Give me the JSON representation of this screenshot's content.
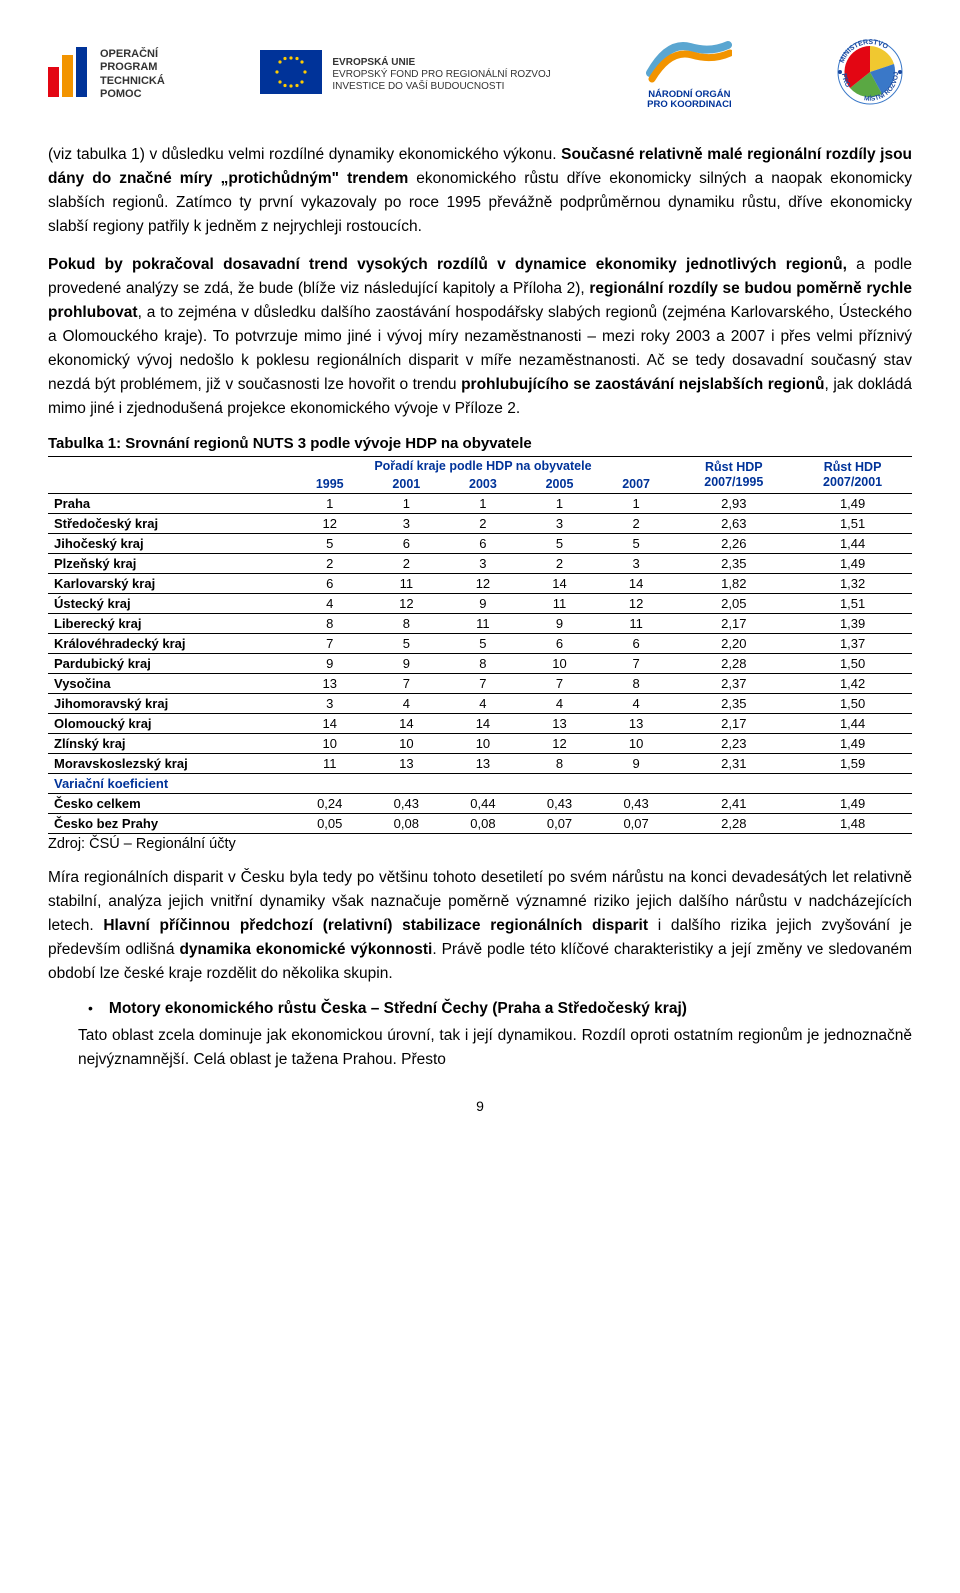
{
  "header": {
    "optp_bold": "OPERAČNÍ\nPROGRAM\nTECHNICKÁ\nPOMOC",
    "eu_title": "EVROPSKÁ UNIE",
    "eu_line1": "EVROPSKÝ FOND PRO REGIONÁLNÍ ROZVOJ",
    "eu_line2": "INVESTICE DO VAŠÍ BUDOUCNOSTI",
    "nok_line1": "NÁRODNÍ ORGÁN",
    "nok_line2": "PRO KOORDINACI",
    "mmr_top": "MINISTERSTVO",
    "mmr_left": "PRO",
    "mmr_right": "MÍSTNÍ ROZVOJ"
  },
  "para1": {
    "t1": "(viz tabulka 1) v důsledku velmi rozdílné dynamiky ekonomického výkonu. ",
    "t2": "Současné relativně malé regionální rozdíly jsou dány do značné míry „protichůdným\" trendem",
    "t3": " ekonomického růstu dříve ekonomicky silných a naopak ekonomicky slabších regionů. Zatímco ty první vykazovaly po roce 1995 převážně podprůměrnou dynamiku růstu, dříve ekonomicky slabší regiony patřily k jedněm z nejrychleji rostoucích."
  },
  "para2": {
    "t1": "Pokud by pokračoval dosavadní trend vysokých rozdílů v dynamice ekonomiky jednotlivých regionů,",
    "t2": " a podle provedené analýzy se zdá, že bude (blíže viz následující kapitoly a Příloha 2), ",
    "t3": "regionální rozdíly se budou poměrně rychle prohlubovat",
    "t4": ", a to zejména v důsledku dalšího zaostávání hospodářsky slabých regionů (zejména Karlovarského, Ústeckého a Olomouckého kraje). To potvrzuje mimo jiné i vývoj míry nezaměstnanosti – mezi roky 2003 a 2007 i přes velmi příznivý ekonomický vývoj nedošlo k poklesu regionálních disparit v míře nezaměstnanosti. Ač se tedy dosavadní současný stav nezdá být problémem, již v současnosti lze hovořit o trendu ",
    "t5": "prohlubujícího se zaostávání nejslabších regionů",
    "t6": ", jak dokládá mimo jiné i zjednodušená projekce ekonomického vývoje v Příloze 2."
  },
  "table": {
    "title": "Tabulka 1: Srovnání regionů NUTS 3 podle vývoje HDP na obyvatele",
    "header_group": "Pořadí kraje podle HDP na obyvatele",
    "years": [
      "1995",
      "2001",
      "2003",
      "2005",
      "2007"
    ],
    "rust1_a": "Růst HDP",
    "rust1_b": "2007/1995",
    "rust2_a": "Růst HDP",
    "rust2_b": "2007/2001",
    "variacni_label": "Variační koeficient",
    "rows": [
      {
        "name": "Praha",
        "v": [
          "1",
          "1",
          "1",
          "1",
          "1",
          "2,93",
          "1,49"
        ]
      },
      {
        "name": "Středočeský kraj",
        "v": [
          "12",
          "3",
          "2",
          "3",
          "2",
          "2,63",
          "1,51"
        ]
      },
      {
        "name": "Jihočeský kraj",
        "v": [
          "5",
          "6",
          "6",
          "5",
          "5",
          "2,26",
          "1,44"
        ]
      },
      {
        "name": "Plzeňský kraj",
        "v": [
          "2",
          "2",
          "3",
          "2",
          "3",
          "2,35",
          "1,49"
        ]
      },
      {
        "name": "Karlovarský kraj",
        "v": [
          "6",
          "11",
          "12",
          "14",
          "14",
          "1,82",
          "1,32"
        ]
      },
      {
        "name": "Ústecký kraj",
        "v": [
          "4",
          "12",
          "9",
          "11",
          "12",
          "2,05",
          "1,51"
        ]
      },
      {
        "name": "Liberecký kraj",
        "v": [
          "8",
          "8",
          "11",
          "9",
          "11",
          "2,17",
          "1,39"
        ]
      },
      {
        "name": "Královéhradecký kraj",
        "v": [
          "7",
          "5",
          "5",
          "6",
          "6",
          "2,20",
          "1,37"
        ]
      },
      {
        "name": "Pardubický kraj",
        "v": [
          "9",
          "9",
          "8",
          "10",
          "7",
          "2,28",
          "1,50"
        ]
      },
      {
        "name": "Vysočina",
        "v": [
          "13",
          "7",
          "7",
          "7",
          "8",
          "2,37",
          "1,42"
        ]
      },
      {
        "name": "Jihomoravský kraj",
        "v": [
          "3",
          "4",
          "4",
          "4",
          "4",
          "2,35",
          "1,50"
        ]
      },
      {
        "name": "Olomoucký kraj",
        "v": [
          "14",
          "14",
          "14",
          "13",
          "13",
          "2,17",
          "1,44"
        ]
      },
      {
        "name": "Zlínský kraj",
        "v": [
          "10",
          "10",
          "10",
          "12",
          "10",
          "2,23",
          "1,49"
        ]
      },
      {
        "name": "Moravskoslezský kraj",
        "v": [
          "11",
          "13",
          "13",
          "8",
          "9",
          "2,31",
          "1,59"
        ]
      }
    ],
    "summary": [
      {
        "name": "Česko celkem",
        "v": [
          "0,24",
          "0,43",
          "0,44",
          "0,43",
          "0,43",
          "2,41",
          "1,49"
        ]
      },
      {
        "name": "Česko bez Prahy",
        "v": [
          "0,05",
          "0,08",
          "0,08",
          "0,07",
          "0,07",
          "2,28",
          "1,48"
        ]
      }
    ],
    "source": "Zdroj: ČSÚ – Regionální účty"
  },
  "para3": {
    "t1": "Míra regionálních disparit v Česku byla tedy po většinu tohoto desetiletí po svém nárůstu na konci devadesátých let relativně stabilní, analýza jejich vnitřní dynamiky však naznačuje poměrně významné riziko jejich dalšího nárůstu v nadcházejících letech. ",
    "t2": "Hlavní příčinnou předchozí (relativní) stabilizace regionálních disparit",
    "t3": " i dalšího rizika jejich zvyšování je především odlišná ",
    "t4": "dynamika ekonomické výkonnosti",
    "t5": ". Právě podle této klíčové charakteristiky a její změny ve sledovaném období lze české kraje rozdělit do několika skupin."
  },
  "bullet": {
    "dot": "•",
    "text": "Motory ekonomického růstu Česka – Střední Čechy (Praha a Středočeský kraj)"
  },
  "para4": "Tato oblast zcela dominuje jak ekonomickou úrovní, tak i její dynamikou. Rozdíl oproti ostatním regionům je jednoznačně nejvýznamnější. Celá oblast je tažena Prahou. Přesto",
  "pagenum": "9",
  "colors": {
    "blue": "#003399",
    "red": "#e30613",
    "orange": "#f29400",
    "eu_blue": "#003399",
    "eu_star": "#ffcc00",
    "nok_cyan": "#5aa6d1",
    "nok_orange": "#f29400",
    "mmr_green": "#5aa843",
    "mmr_blue": "#3a78c8",
    "mmr_yellow": "#f0c830"
  }
}
